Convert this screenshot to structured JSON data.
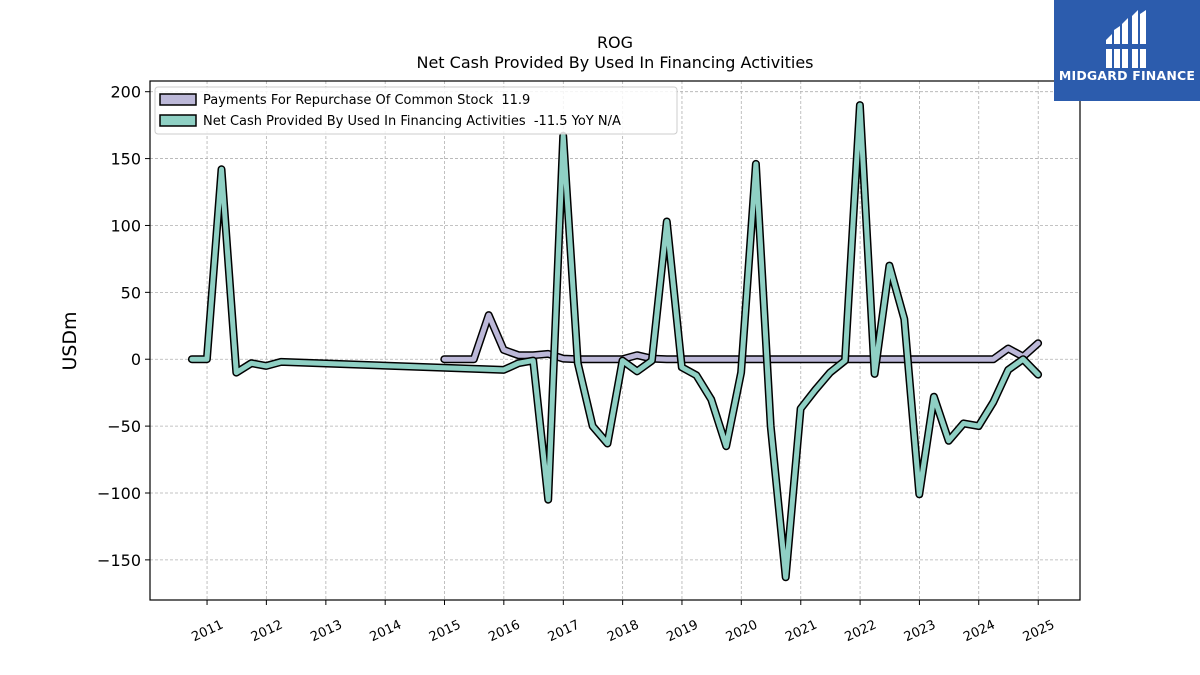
{
  "brand": {
    "name": "MIDGARD FINANCE",
    "color": "#2c5cad"
  },
  "chart_data": {
    "type": "line",
    "title": "ROG",
    "subtitle": "Net Cash Provided By Used In Financing Activities",
    "xlabel": "",
    "ylabel": "USDm",
    "ylim": [
      -180,
      208
    ],
    "xlim": [
      "2010-01-15",
      "2025-09-15"
    ],
    "yticks": [
      -150,
      -100,
      -50,
      0,
      50,
      100,
      150,
      200
    ],
    "ytick_labels": [
      "−150",
      "−100",
      "−50",
      "0",
      "50",
      "100",
      "150",
      "200"
    ],
    "xticks": [
      "2011-01-01",
      "2012-01-01",
      "2013-01-01",
      "2014-01-01",
      "2015-01-01",
      "2016-01-01",
      "2017-01-01",
      "2018-01-01",
      "2019-01-01",
      "2020-01-01",
      "2021-01-01",
      "2022-01-01",
      "2023-01-01",
      "2024-01-01",
      "2025-01-01"
    ],
    "xtick_labels": [
      "2011",
      "2012",
      "2013",
      "2014",
      "2015",
      "2016",
      "2017",
      "2018",
      "2019",
      "2020",
      "2021",
      "2022",
      "2023",
      "2024",
      "2025"
    ],
    "grid": true,
    "legend_position": "top-left",
    "series": [
      {
        "name": "Payments For Repurchase Of Common Stock  11.9",
        "color": "#bcb8d8",
        "x": [
          "2014-12-31",
          "2015-03-31",
          "2015-06-30",
          "2015-09-30",
          "2015-12-31",
          "2016-03-31",
          "2016-06-30",
          "2016-09-30",
          "2016-12-31",
          "2017-03-31",
          "2017-06-30",
          "2017-09-30",
          "2017-12-31",
          "2018-03-31",
          "2018-06-30",
          "2018-09-30",
          "2018-12-31",
          "2019-03-31",
          "2019-06-30",
          "2019-09-30",
          "2019-12-31",
          "2020-03-31",
          "2020-06-30",
          "2020-09-30",
          "2020-12-31",
          "2021-03-31",
          "2021-06-30",
          "2021-09-30",
          "2021-12-31",
          "2022-03-31",
          "2022-06-30",
          "2022-09-30",
          "2022-12-31",
          "2023-03-31",
          "2023-06-30",
          "2023-09-30",
          "2023-12-31",
          "2024-03-31",
          "2024-06-30",
          "2024-09-30",
          "2024-12-31"
        ],
        "values": [
          0,
          0,
          0,
          33,
          7,
          3,
          3,
          4,
          0.5,
          0,
          0,
          0,
          0,
          3,
          0.5,
          0,
          0,
          0,
          0,
          0,
          0,
          0,
          0,
          0,
          0,
          0,
          0,
          0,
          0,
          0,
          0,
          0,
          0,
          0,
          0,
          0,
          0,
          0,
          8,
          2,
          11.9
        ]
      },
      {
        "name": "Net Cash Provided By Used In Financing Activities  -11.5 YoY N/A",
        "color": "#8fd0c4",
        "x": [
          "2010-09-30",
          "2010-12-31",
          "2011-03-31",
          "2011-06-30",
          "2011-09-30",
          "2011-12-31",
          "2012-03-31",
          "2015-12-31",
          "2016-03-31",
          "2016-06-30",
          "2016-09-30",
          "2016-12-31",
          "2017-03-31",
          "2017-06-30",
          "2017-09-30",
          "2017-12-31",
          "2018-03-31",
          "2018-06-30",
          "2018-09-30",
          "2018-12-31",
          "2019-03-31",
          "2019-06-30",
          "2019-09-30",
          "2019-12-31",
          "2020-03-31",
          "2020-06-30",
          "2020-09-30",
          "2020-12-31",
          "2021-03-31",
          "2021-06-30",
          "2021-09-30",
          "2021-12-31",
          "2022-03-31",
          "2022-06-30",
          "2022-09-30",
          "2022-12-31",
          "2023-03-31",
          "2023-06-30",
          "2023-09-30",
          "2023-12-31",
          "2024-03-31",
          "2024-06-30",
          "2024-09-30",
          "2024-12-31"
        ],
        "values": [
          0,
          0,
          142,
          -10,
          -3,
          -5,
          -2,
          -8,
          -3,
          -1,
          -105,
          167,
          -3,
          -50,
          -63,
          -1,
          -9,
          -1,
          103,
          -6,
          -12,
          -30,
          -65,
          -10,
          146,
          -50,
          -163,
          -37,
          -23,
          -10,
          -1,
          190,
          -11,
          70,
          30,
          -101,
          -28,
          -61,
          -48,
          -50,
          -32,
          -8,
          0,
          -11.5
        ]
      }
    ]
  }
}
